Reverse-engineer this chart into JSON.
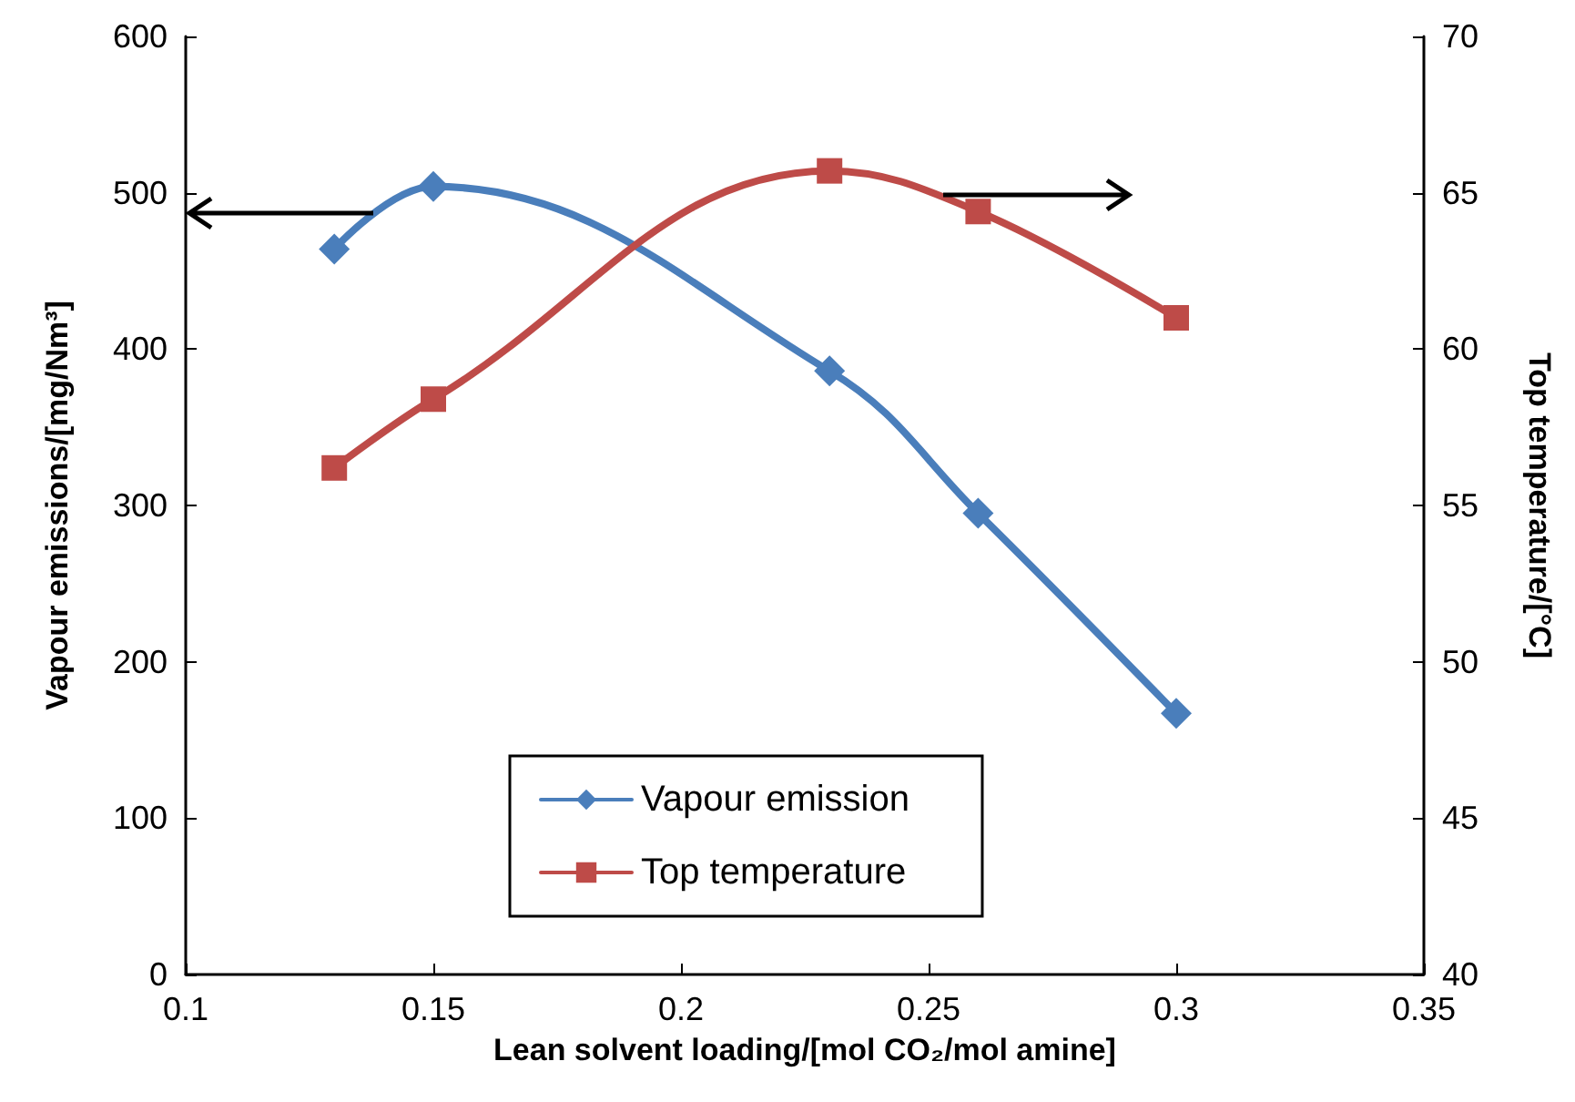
{
  "chart_data": {
    "type": "line",
    "xlabel": "Lean solvent loading/[mol CO₂/mol amine]",
    "ylabel": "Vapour emissions/[mg/Nm³]",
    "y2label": "Top temperature/[°C]",
    "x": [
      0.13,
      0.15,
      0.23,
      0.26,
      0.3
    ],
    "series": [
      {
        "name": "Vapour emission",
        "color": "#4a7ebb",
        "marker": "diamond",
        "values": [
          464,
          504,
          386,
          295,
          167
        ]
      },
      {
        "name": "Top temperature",
        "color": "#be4b48",
        "marker": "square",
        "axis": "y2",
        "values": [
          56.2,
          58.4,
          65.7,
          64.4,
          61.0
        ]
      }
    ],
    "xlim": [
      0.1,
      0.35
    ],
    "xticks": [
      0.1,
      0.15,
      0.2,
      0.25,
      0.3,
      0.35
    ],
    "ylim": [
      0,
      600
    ],
    "yticks": [
      0,
      100,
      200,
      300,
      400,
      500,
      600
    ],
    "y2lim": [
      40,
      70
    ],
    "y2ticks": [
      40,
      45,
      50,
      55,
      60,
      65,
      70
    ],
    "grid": false,
    "legend": "bottom",
    "line_style": "solid"
  }
}
